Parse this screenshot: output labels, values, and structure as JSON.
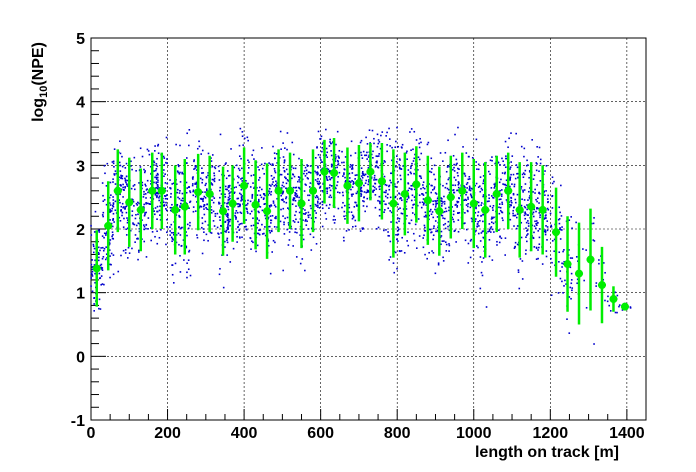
{
  "chart_data": {
    "type": "scatter",
    "xlabel": "length on track [m]",
    "ylabel": {
      "base": "log",
      "subscript": "10",
      "rest": "(NPE)"
    },
    "xlim": [
      0,
      1450
    ],
    "ylim": [
      -1,
      5
    ],
    "x_ticks": [
      "0",
      "200",
      "400",
      "600",
      "800",
      "1000",
      "1200",
      "1400"
    ],
    "y_ticks": [
      "-1",
      "0",
      "1",
      "2",
      "3",
      "4",
      "5"
    ],
    "grid": true,
    "colors": {
      "points": "#0000cc",
      "profile": "#00ee00"
    },
    "profile": {
      "x": [
        15,
        45,
        70,
        100,
        130,
        160,
        185,
        220,
        245,
        280,
        310,
        345,
        370,
        400,
        430,
        460,
        490,
        520,
        550,
        580,
        610,
        635,
        670,
        700,
        730,
        760,
        790,
        820,
        850,
        880,
        910,
        940,
        970,
        1000,
        1030,
        1060,
        1090,
        1120,
        1150,
        1180,
        1215,
        1245,
        1275,
        1305,
        1335,
        1365,
        1395
      ],
      "y": [
        1.38,
        2.05,
        2.6,
        2.42,
        2.3,
        2.6,
        2.6,
        2.3,
        2.35,
        2.58,
        2.55,
        2.28,
        2.4,
        2.68,
        2.38,
        2.28,
        2.6,
        2.6,
        2.4,
        2.6,
        2.9,
        2.88,
        2.68,
        2.72,
        2.9,
        2.75,
        2.4,
        2.55,
        2.7,
        2.45,
        2.28,
        2.5,
        2.6,
        2.4,
        2.3,
        2.55,
        2.6,
        2.3,
        2.35,
        2.3,
        1.95,
        1.45,
        1.3,
        1.52,
        1.12,
        0.9,
        0.78
      ],
      "yerr": [
        0.6,
        0.7,
        0.65,
        0.7,
        0.65,
        0.6,
        0.6,
        0.7,
        0.75,
        0.6,
        0.6,
        0.7,
        0.6,
        0.6,
        0.7,
        0.75,
        0.65,
        0.6,
        0.7,
        0.65,
        0.5,
        0.55,
        0.6,
        0.6,
        0.45,
        0.6,
        0.85,
        0.65,
        0.6,
        0.7,
        0.7,
        0.65,
        0.6,
        0.7,
        0.75,
        0.6,
        0.6,
        0.75,
        0.7,
        0.7,
        0.7,
        0.75,
        0.8,
        0.8,
        0.6,
        0.2,
        0.05
      ]
    }
  }
}
